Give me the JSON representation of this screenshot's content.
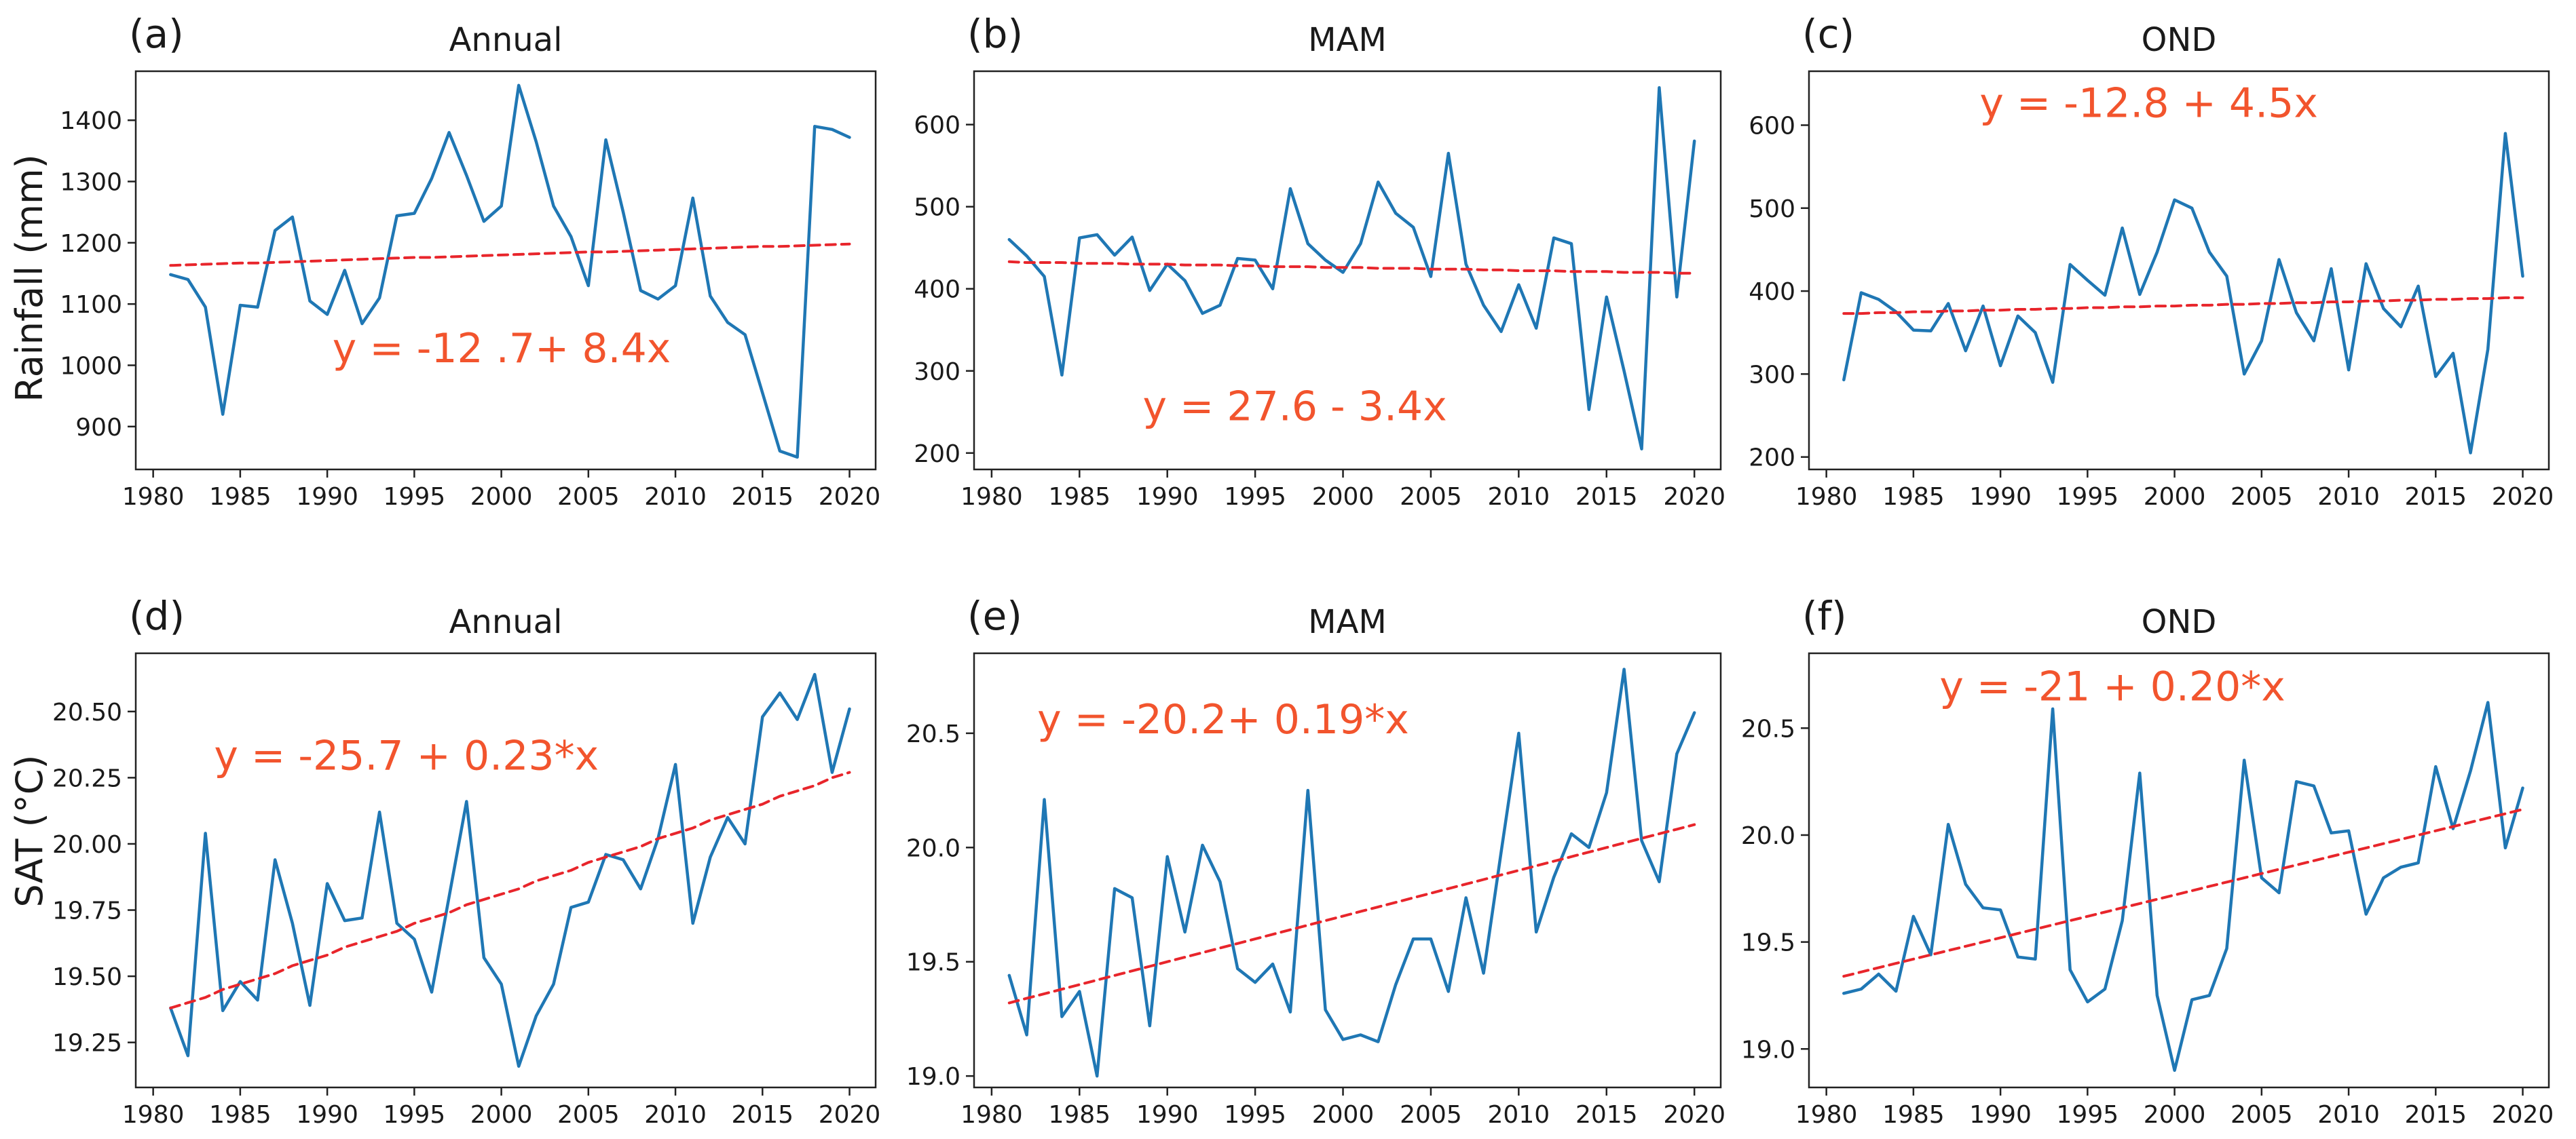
{
  "figure": {
    "ylabel_top": "Rainfall (mm)",
    "ylabel_bottom": "SAT (°C)"
  },
  "chart_data": [
    {
      "type": "line",
      "panel_label": "(a)",
      "title": "Annual",
      "ylabel": "Rainfall (mm)",
      "xlim": [
        1979,
        2021.5
      ],
      "ylim": [
        830,
        1480
      ],
      "xticks": [
        1980,
        1985,
        1990,
        1995,
        2000,
        2005,
        2010,
        2015,
        2020
      ],
      "yticks": [
        900,
        1000,
        1100,
        1200,
        1300,
        1400
      ],
      "ytick_decimals": 0,
      "x": [
        1981,
        1982,
        1983,
        1984,
        1985,
        1986,
        1987,
        1988,
        1989,
        1990,
        1991,
        1992,
        1993,
        1994,
        1995,
        1996,
        1997,
        1998,
        1999,
        2000,
        2001,
        2002,
        2003,
        2004,
        2005,
        2006,
        2007,
        2008,
        2009,
        2010,
        2011,
        2012,
        2013,
        2014,
        2015,
        2016,
        2017,
        2018,
        2019,
        2020
      ],
      "series": [
        {
          "name": "observed",
          "values": [
            1148,
            1140,
            1095,
            920,
            1098,
            1095,
            1220,
            1242,
            1105,
            1083,
            1155,
            1068,
            1110,
            1244,
            1248,
            1305,
            1380,
            1310,
            1235,
            1260,
            1457,
            1365,
            1260,
            1210,
            1130,
            1368,
            1250,
            1122,
            1108,
            1130,
            1273,
            1113,
            1070,
            1050,
            955,
            860,
            850,
            1390,
            1385,
            1372
          ]
        },
        {
          "name": "trend",
          "values": [
            1163,
            1164,
            1165,
            1166,
            1167,
            1167,
            1168,
            1169,
            1170,
            1171,
            1172,
            1173,
            1174,
            1175,
            1176,
            1176,
            1177,
            1178,
            1179,
            1180,
            1181,
            1182,
            1183,
            1184,
            1185,
            1185,
            1186,
            1187,
            1188,
            1189,
            1190,
            1191,
            1192,
            1193,
            1194,
            1194,
            1195,
            1196,
            1197,
            1198
          ]
        }
      ],
      "annotation": "y = -12 .7+ 8.4x",
      "annotation_pos": [
        1990.3,
        1005
      ]
    },
    {
      "type": "line",
      "panel_label": "(b)",
      "title": "MAM",
      "xlim": [
        1979,
        2021.5
      ],
      "ylim": [
        180,
        665
      ],
      "xticks": [
        1980,
        1985,
        1990,
        1995,
        2000,
        2005,
        2010,
        2015,
        2020
      ],
      "yticks": [
        200,
        300,
        400,
        500,
        600
      ],
      "ytick_decimals": 0,
      "x": [
        1981,
        1982,
        1983,
        1984,
        1985,
        1986,
        1987,
        1988,
        1989,
        1990,
        1991,
        1992,
        1993,
        1994,
        1995,
        1996,
        1997,
        1998,
        1999,
        2000,
        2001,
        2002,
        2003,
        2004,
        2005,
        2006,
        2007,
        2008,
        2009,
        2010,
        2011,
        2012,
        2013,
        2014,
        2015,
        2016,
        2017,
        2018,
        2019,
        2020
      ],
      "series": [
        {
          "name": "observed",
          "values": [
            460,
            440,
            415,
            295,
            462,
            466,
            441,
            463,
            398,
            430,
            410,
            370,
            380,
            437,
            435,
            400,
            522,
            455,
            435,
            420,
            455,
            530,
            492,
            475,
            415,
            565,
            430,
            380,
            348,
            405,
            352,
            462,
            455,
            253,
            390,
            300,
            205,
            645,
            390,
            580
          ]
        },
        {
          "name": "trend",
          "values": [
            433,
            432,
            432,
            432,
            431,
            431,
            431,
            430,
            430,
            430,
            429,
            429,
            429,
            428,
            428,
            427,
            427,
            427,
            426,
            426,
            426,
            425,
            425,
            425,
            424,
            424,
            424,
            423,
            423,
            422,
            422,
            422,
            421,
            421,
            421,
            420,
            420,
            420,
            419,
            419
          ]
        }
      ],
      "annotation": "y = 27.6 - 3.4x",
      "annotation_pos": [
        1988.6,
        240
      ]
    },
    {
      "type": "line",
      "panel_label": "(c)",
      "title": "OND",
      "xlim": [
        1979,
        2021.5
      ],
      "ylim": [
        185,
        665
      ],
      "xticks": [
        1980,
        1985,
        1990,
        1995,
        2000,
        2005,
        2010,
        2015,
        2020
      ],
      "yticks": [
        200,
        300,
        400,
        500,
        600
      ],
      "ytick_decimals": 0,
      "x": [
        1981,
        1982,
        1983,
        1984,
        1985,
        1986,
        1987,
        1988,
        1989,
        1990,
        1991,
        1992,
        1993,
        1994,
        1995,
        1996,
        1997,
        1998,
        1999,
        2000,
        2001,
        2002,
        2003,
        2004,
        2005,
        2006,
        2007,
        2008,
        2009,
        2010,
        2011,
        2012,
        2013,
        2014,
        2015,
        2016,
        2017,
        2018,
        2019,
        2020
      ],
      "series": [
        {
          "name": "observed",
          "values": [
            293,
            398,
            390,
            375,
            353,
            352,
            385,
            328,
            382,
            310,
            370,
            350,
            290,
            432,
            413,
            395,
            476,
            396,
            447,
            510,
            500,
            447,
            418,
            300,
            340,
            438,
            374,
            340,
            427,
            305,
            433,
            379,
            357,
            406,
            297,
            325,
            205,
            330,
            590,
            418
          ]
        },
        {
          "name": "trend",
          "values": [
            373,
            373,
            374,
            374,
            375,
            375,
            376,
            376,
            377,
            377,
            378,
            378,
            379,
            379,
            380,
            380,
            381,
            381,
            382,
            382,
            383,
            383,
            384,
            384,
            385,
            385,
            386,
            386,
            387,
            387,
            388,
            388,
            389,
            389,
            390,
            390,
            391,
            391,
            392,
            392
          ]
        }
      ],
      "annotation": "y = -12.8 + 4.5x",
      "annotation_pos": [
        1988.8,
        610
      ]
    },
    {
      "type": "line",
      "panel_label": "(d)",
      "title": "Annual",
      "ylabel": "SAT (°C)",
      "xlim": [
        1979,
        2021.5
      ],
      "ylim": [
        19.08,
        20.72
      ],
      "xticks": [
        1980,
        1985,
        1990,
        1995,
        2000,
        2005,
        2010,
        2015,
        2020
      ],
      "yticks": [
        19.25,
        19.5,
        19.75,
        20.0,
        20.25,
        20.5
      ],
      "ytick_decimals": 2,
      "x": [
        1981,
        1982,
        1983,
        1984,
        1985,
        1986,
        1987,
        1988,
        1989,
        1990,
        1991,
        1992,
        1993,
        1994,
        1995,
        1996,
        1997,
        1998,
        1999,
        2000,
        2001,
        2002,
        2003,
        2004,
        2005,
        2006,
        2007,
        2008,
        2009,
        2010,
        2011,
        2012,
        2013,
        2014,
        2015,
        2016,
        2017,
        2018,
        2019,
        2020
      ],
      "series": [
        {
          "name": "observed",
          "values": [
            19.38,
            19.2,
            20.04,
            19.37,
            19.48,
            19.41,
            19.94,
            19.7,
            19.39,
            19.85,
            19.71,
            19.72,
            20.12,
            19.7,
            19.64,
            19.44,
            19.8,
            20.16,
            19.57,
            19.47,
            19.16,
            19.35,
            19.47,
            19.76,
            19.78,
            19.96,
            19.94,
            19.83,
            20.02,
            20.3,
            19.7,
            19.95,
            20.1,
            20.0,
            20.48,
            20.57,
            20.47,
            20.64,
            20.27,
            20.51
          ]
        },
        {
          "name": "trend",
          "values": [
            19.38,
            19.4,
            19.42,
            19.45,
            19.47,
            19.49,
            19.51,
            19.54,
            19.56,
            19.58,
            19.61,
            19.63,
            19.65,
            19.67,
            19.7,
            19.72,
            19.74,
            19.77,
            19.79,
            19.81,
            19.83,
            19.86,
            19.88,
            19.9,
            19.93,
            19.95,
            19.97,
            19.99,
            20.02,
            20.04,
            20.06,
            20.09,
            20.11,
            20.13,
            20.15,
            20.18,
            20.2,
            20.22,
            20.25,
            20.27
          ]
        }
      ],
      "annotation": "y = -25.7 + 0.23*x",
      "annotation_pos": [
        1983.5,
        20.28
      ]
    },
    {
      "type": "line",
      "panel_label": "(e)",
      "title": "MAM",
      "xlim": [
        1979,
        2021.5
      ],
      "ylim": [
        18.95,
        20.85
      ],
      "xticks": [
        1980,
        1985,
        1990,
        1995,
        2000,
        2005,
        2010,
        2015,
        2020
      ],
      "yticks": [
        19.0,
        19.5,
        20.0,
        20.5
      ],
      "ytick_decimals": 1,
      "x": [
        1981,
        1982,
        1983,
        1984,
        1985,
        1986,
        1987,
        1988,
        1989,
        1990,
        1991,
        1992,
        1993,
        1994,
        1995,
        1996,
        1997,
        1998,
        1999,
        2000,
        2001,
        2002,
        2003,
        2004,
        2005,
        2006,
        2007,
        2008,
        2009,
        2010,
        2011,
        2012,
        2013,
        2014,
        2015,
        2016,
        2017,
        2018,
        2019,
        2020
      ],
      "series": [
        {
          "name": "observed",
          "values": [
            19.44,
            19.18,
            20.21,
            19.26,
            19.37,
            19.0,
            19.82,
            19.78,
            19.22,
            19.96,
            19.63,
            20.01,
            19.85,
            19.47,
            19.41,
            19.49,
            19.28,
            20.25,
            19.29,
            19.16,
            19.18,
            19.15,
            19.4,
            19.6,
            19.6,
            19.37,
            19.78,
            19.45,
            19.98,
            20.5,
            19.63,
            19.87,
            20.06,
            20.0,
            20.24,
            20.78,
            20.03,
            19.85,
            20.41,
            20.59
          ]
        },
        {
          "name": "trend",
          "values": [
            19.32,
            19.34,
            19.36,
            19.38,
            19.4,
            19.42,
            19.44,
            19.46,
            19.48,
            19.5,
            19.52,
            19.54,
            19.56,
            19.58,
            19.6,
            19.62,
            19.64,
            19.66,
            19.68,
            19.7,
            19.72,
            19.74,
            19.76,
            19.78,
            19.8,
            19.82,
            19.84,
            19.86,
            19.88,
            19.9,
            19.92,
            19.94,
            19.96,
            19.98,
            20.0,
            20.02,
            20.04,
            20.06,
            20.08,
            20.1
          ]
        }
      ],
      "annotation": "y = -20.2+ 0.19*x",
      "annotation_pos": [
        1982.6,
        20.5
      ]
    },
    {
      "type": "line",
      "panel_label": "(f)",
      "title": "OND",
      "xlim": [
        1979,
        2021.5
      ],
      "ylim": [
        18.82,
        20.85
      ],
      "xticks": [
        1980,
        1985,
        1990,
        1995,
        2000,
        2005,
        2010,
        2015,
        2020
      ],
      "yticks": [
        19.0,
        19.5,
        20.0,
        20.5
      ],
      "ytick_decimals": 1,
      "x": [
        1981,
        1982,
        1983,
        1984,
        1985,
        1986,
        1987,
        1988,
        1989,
        1990,
        1991,
        1992,
        1993,
        1994,
        1995,
        1996,
        1997,
        1998,
        1999,
        2000,
        2001,
        2002,
        2003,
        2004,
        2005,
        2006,
        2007,
        2008,
        2009,
        2010,
        2011,
        2012,
        2013,
        2014,
        2015,
        2016,
        2017,
        2018,
        2019,
        2020
      ],
      "series": [
        {
          "name": "observed",
          "values": [
            19.26,
            19.28,
            19.35,
            19.27,
            19.62,
            19.44,
            20.05,
            19.77,
            19.66,
            19.65,
            19.43,
            19.42,
            20.59,
            19.37,
            19.22,
            19.28,
            19.6,
            20.29,
            19.25,
            18.9,
            19.23,
            19.25,
            19.47,
            20.35,
            19.8,
            19.73,
            20.25,
            20.23,
            20.01,
            20.02,
            19.63,
            19.8,
            19.85,
            19.87,
            20.32,
            20.03,
            20.3,
            20.62,
            19.94,
            20.22
          ]
        },
        {
          "name": "trend",
          "values": [
            19.34,
            19.36,
            19.38,
            19.4,
            19.42,
            19.44,
            19.46,
            19.48,
            19.5,
            19.52,
            19.54,
            19.56,
            19.58,
            19.6,
            19.62,
            19.64,
            19.66,
            19.68,
            19.7,
            19.72,
            19.74,
            19.76,
            19.78,
            19.8,
            19.82,
            19.84,
            19.86,
            19.88,
            19.9,
            19.92,
            19.94,
            19.96,
            19.98,
            20.0,
            20.02,
            20.04,
            20.06,
            20.08,
            20.1,
            20.12
          ]
        }
      ],
      "annotation": "y = -21 + 0.20*x",
      "annotation_pos": [
        1986.5,
        20.63
      ]
    }
  ],
  "colors": {
    "observed": "#1f77b4",
    "trend": "#e8252b",
    "annotation": "#f2542d",
    "axis": "#222222",
    "text": "#1a1a1a"
  }
}
